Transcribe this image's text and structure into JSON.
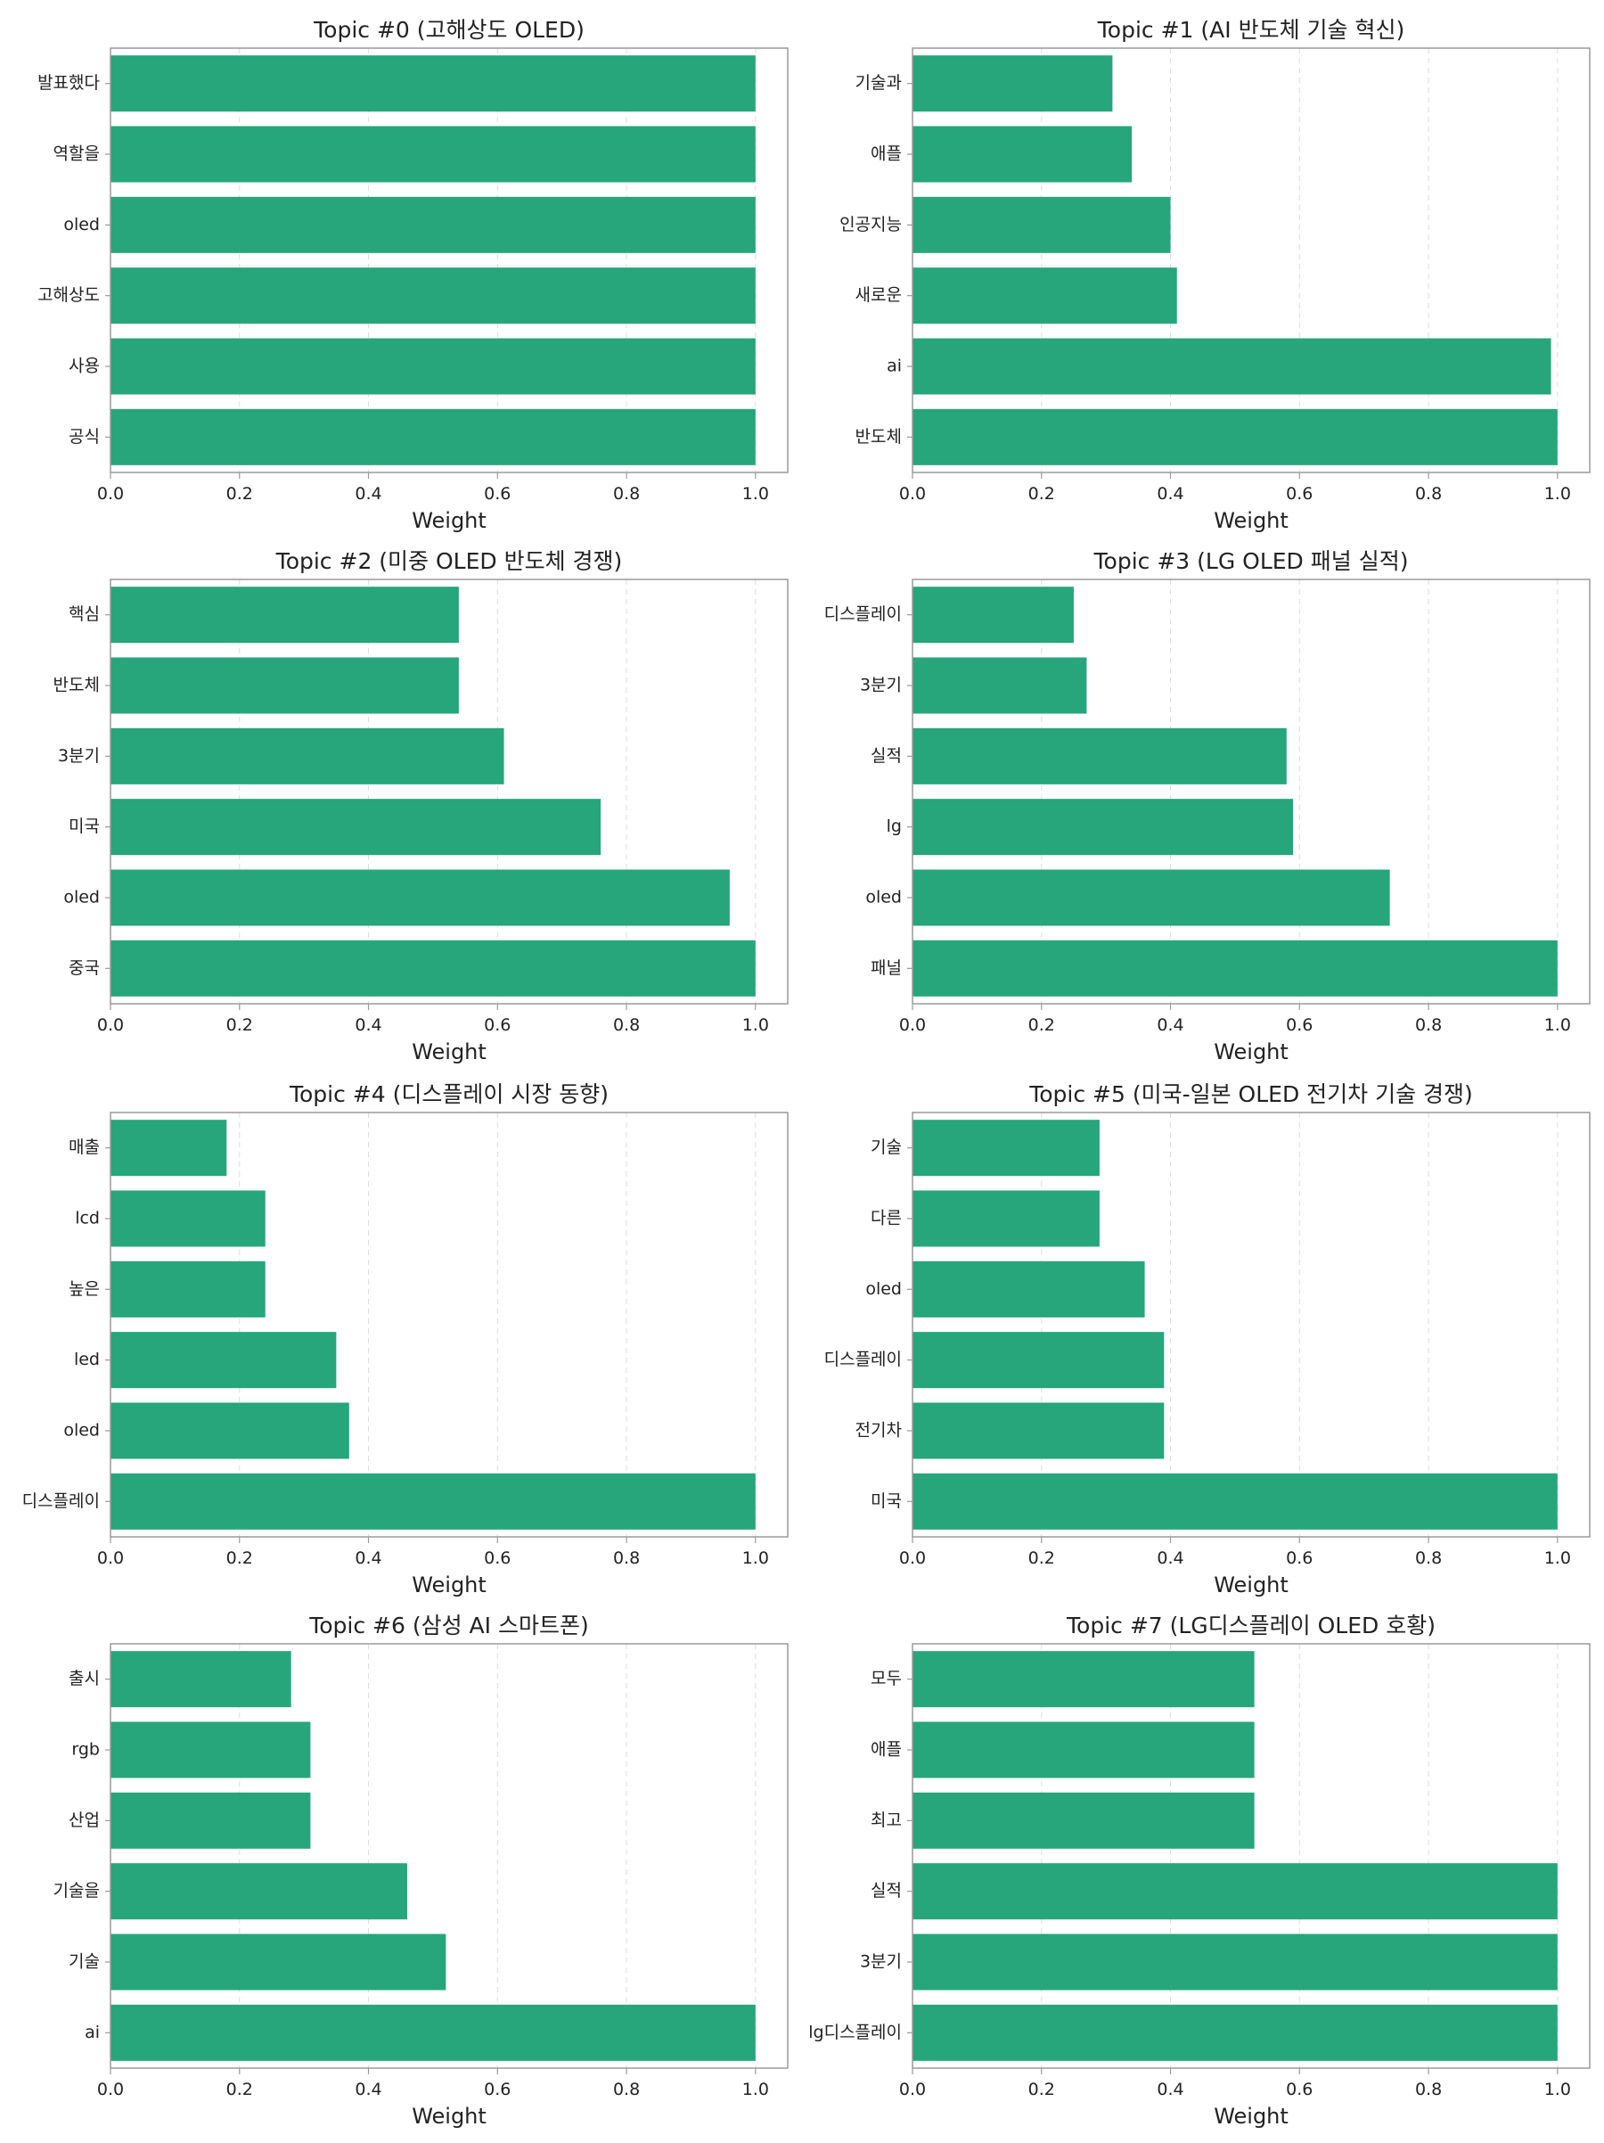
{
  "chart_data": [
    {
      "type": "bar",
      "orientation": "horizontal",
      "title": "Topic #0 (고해상도 OLED)",
      "xlabel": "Weight",
      "xlim": [
        0,
        1.05
      ],
      "xticks": [
        "0.0",
        "0.2",
        "0.4",
        "0.6",
        "0.8",
        "1.0"
      ],
      "grid": "x-dashed",
      "categories": [
        "발표했다",
        "역할을",
        "oled",
        "고해상도",
        "사용",
        "공식"
      ],
      "values": [
        1.0,
        1.0,
        1.0,
        1.0,
        1.0,
        1.0
      ]
    },
    {
      "type": "bar",
      "orientation": "horizontal",
      "title": "Topic #1 (AI 반도체 기술 혁신)",
      "xlabel": "Weight",
      "xlim": [
        0,
        1.05
      ],
      "xticks": [
        "0.0",
        "0.2",
        "0.4",
        "0.6",
        "0.8",
        "1.0"
      ],
      "grid": "x-dashed",
      "categories": [
        "기술과",
        "애플",
        "인공지능",
        "새로운",
        "ai",
        "반도체"
      ],
      "values": [
        0.31,
        0.34,
        0.4,
        0.41,
        0.99,
        1.0
      ]
    },
    {
      "type": "bar",
      "orientation": "horizontal",
      "title": "Topic #2 (미중 OLED 반도체 경쟁)",
      "xlabel": "Weight",
      "xlim": [
        0,
        1.05
      ],
      "xticks": [
        "0.0",
        "0.2",
        "0.4",
        "0.6",
        "0.8",
        "1.0"
      ],
      "grid": "x-dashed",
      "categories": [
        "핵심",
        "반도체",
        "3분기",
        "미국",
        "oled",
        "중국"
      ],
      "values": [
        0.54,
        0.54,
        0.61,
        0.76,
        0.96,
        1.0
      ]
    },
    {
      "type": "bar",
      "orientation": "horizontal",
      "title": "Topic #3 (LG OLED 패널 실적)",
      "xlabel": "Weight",
      "xlim": [
        0,
        1.05
      ],
      "xticks": [
        "0.0",
        "0.2",
        "0.4",
        "0.6",
        "0.8",
        "1.0"
      ],
      "grid": "x-dashed",
      "categories": [
        "디스플레이",
        "3분기",
        "실적",
        "lg",
        "oled",
        "패널"
      ],
      "values": [
        0.25,
        0.27,
        0.58,
        0.59,
        0.74,
        1.0
      ]
    },
    {
      "type": "bar",
      "orientation": "horizontal",
      "title": "Topic #4 (디스플레이 시장 동향)",
      "xlabel": "Weight",
      "xlim": [
        0,
        1.05
      ],
      "xticks": [
        "0.0",
        "0.2",
        "0.4",
        "0.6",
        "0.8",
        "1.0"
      ],
      "grid": "x-dashed",
      "categories": [
        "매출",
        "lcd",
        "높은",
        "led",
        "oled",
        "디스플레이"
      ],
      "values": [
        0.18,
        0.24,
        0.24,
        0.35,
        0.37,
        1.0
      ]
    },
    {
      "type": "bar",
      "orientation": "horizontal",
      "title": "Topic #5 (미국-일본 OLED 전기차 기술 경쟁)",
      "xlabel": "Weight",
      "xlim": [
        0,
        1.05
      ],
      "xticks": [
        "0.0",
        "0.2",
        "0.4",
        "0.6",
        "0.8",
        "1.0"
      ],
      "grid": "x-dashed",
      "categories": [
        "기술",
        "다른",
        "oled",
        "디스플레이",
        "전기차",
        "미국"
      ],
      "values": [
        0.29,
        0.29,
        0.36,
        0.39,
        0.39,
        1.0
      ]
    },
    {
      "type": "bar",
      "orientation": "horizontal",
      "title": "Topic #6 (삼성 AI 스마트폰)",
      "xlabel": "Weight",
      "xlim": [
        0,
        1.05
      ],
      "xticks": [
        "0.0",
        "0.2",
        "0.4",
        "0.6",
        "0.8",
        "1.0"
      ],
      "grid": "x-dashed",
      "categories": [
        "출시",
        "rgb",
        "산업",
        "기술을",
        "기술",
        "ai"
      ],
      "values": [
        0.28,
        0.31,
        0.31,
        0.46,
        0.52,
        1.0
      ]
    },
    {
      "type": "bar",
      "orientation": "horizontal",
      "title": "Topic #7 (LG디스플레이 OLED 호황)",
      "xlabel": "Weight",
      "xlim": [
        0,
        1.05
      ],
      "xticks": [
        "0.0",
        "0.2",
        "0.4",
        "0.6",
        "0.8",
        "1.0"
      ],
      "grid": "x-dashed",
      "categories": [
        "모두",
        "애플",
        "최고",
        "실적",
        "3분기",
        "lg디스플레이"
      ],
      "values": [
        0.53,
        0.53,
        0.53,
        1.0,
        1.0,
        1.0
      ]
    }
  ],
  "colors": {
    "bar": "#26a67a",
    "axis": "#9a9a9a",
    "grid": "#dddddd",
    "text": "#222222"
  }
}
